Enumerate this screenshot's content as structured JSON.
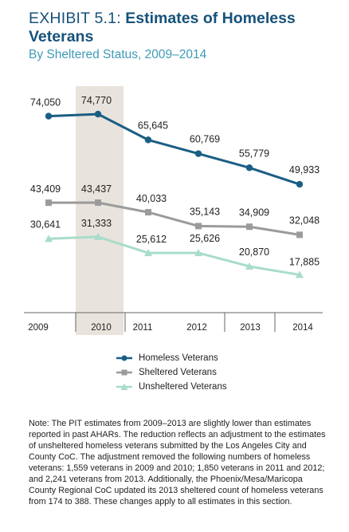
{
  "header": {
    "exhibit": "EXHIBIT 5.1:",
    "title": "Estimates of Homeless Veterans",
    "subtitle": "By Sheltered Status, 2009–2014"
  },
  "chart_data": {
    "type": "line",
    "categories": [
      "2009",
      "2010",
      "2011",
      "2012",
      "2013",
      "2014"
    ],
    "highlight_category": "2010",
    "series": [
      {
        "name": "Homeless Veterans",
        "color": "#1a5e84",
        "marker": "circle",
        "values": [
          74050,
          74770,
          65645,
          60769,
          55779,
          49933
        ],
        "labels": [
          "74,050",
          "74,770",
          "65,645",
          "60,769",
          "55,779",
          "49,933"
        ]
      },
      {
        "name": "Sheltered Veterans",
        "color": "#9b9b9b",
        "marker": "square",
        "values": [
          43409,
          43437,
          40033,
          35143,
          34909,
          32048
        ],
        "labels": [
          "43,409",
          "43,437",
          "40,033",
          "35,143",
          "34,909",
          "32,048"
        ]
      },
      {
        "name": "Unsheltered Veterans",
        "color": "#a9dccb",
        "marker": "triangle",
        "values": [
          30641,
          31333,
          25612,
          25626,
          20870,
          17885
        ],
        "labels": [
          "30,641",
          "31,333",
          "25,612",
          "25,626",
          "20,870",
          "17,885"
        ]
      }
    ],
    "legend_position": "bottom"
  },
  "note": "Note: The PIT estimates from 2009–2013 are slightly lower than estimates reported in past AHARs. The reduction reflects an adjustment to the estimates of unsheltered homeless veterans submitted by the Los Angeles City and County CoC. The adjustment removed the following numbers of homeless veterans: 1,559 veterans in 2009 and 2010; 1,850 veterans in 2011 and 2012; and 2,241 veterans from 2013. Additionally, the Phoenix/Mesa/Maricopa County Regional CoC updated its 2013 sheltered count of homeless veterans from 174 to 388. These changes apply to all estimates in this section."
}
